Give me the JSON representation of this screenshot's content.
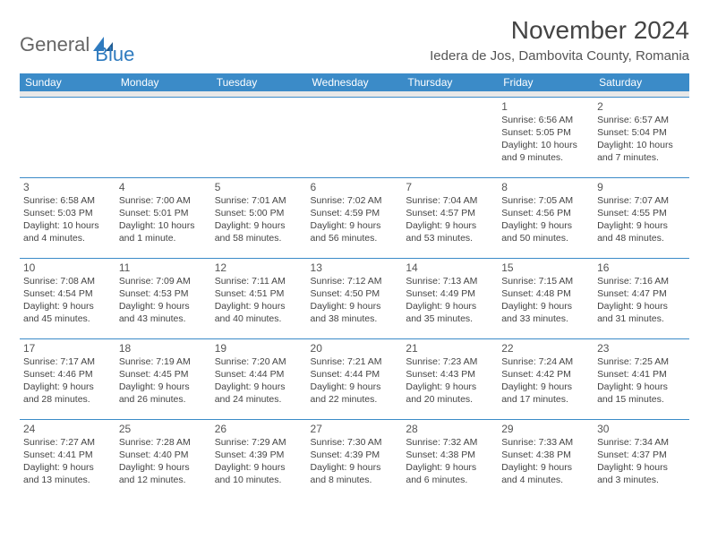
{
  "brand": {
    "general": "General",
    "blue": "Blue"
  },
  "title": "November 2024",
  "location": "Iedera de Jos, Dambovita County, Romania",
  "headers_bg": "#3b8bc8",
  "headers_fg": "#ffffff",
  "spacer_bg": "#e8e8e8",
  "border_color": "#3b8bc8",
  "day_headers": [
    "Sunday",
    "Monday",
    "Tuesday",
    "Wednesday",
    "Thursday",
    "Friday",
    "Saturday"
  ],
  "weeks": [
    [
      null,
      null,
      null,
      null,
      null,
      {
        "n": "1",
        "sr": "6:56 AM",
        "ss": "5:05 PM",
        "dl": "10 hours and 9 minutes."
      },
      {
        "n": "2",
        "sr": "6:57 AM",
        "ss": "5:04 PM",
        "dl": "10 hours and 7 minutes."
      }
    ],
    [
      {
        "n": "3",
        "sr": "6:58 AM",
        "ss": "5:03 PM",
        "dl": "10 hours and 4 minutes."
      },
      {
        "n": "4",
        "sr": "7:00 AM",
        "ss": "5:01 PM",
        "dl": "10 hours and 1 minute."
      },
      {
        "n": "5",
        "sr": "7:01 AM",
        "ss": "5:00 PM",
        "dl": "9 hours and 58 minutes."
      },
      {
        "n": "6",
        "sr": "7:02 AM",
        "ss": "4:59 PM",
        "dl": "9 hours and 56 minutes."
      },
      {
        "n": "7",
        "sr": "7:04 AM",
        "ss": "4:57 PM",
        "dl": "9 hours and 53 minutes."
      },
      {
        "n": "8",
        "sr": "7:05 AM",
        "ss": "4:56 PM",
        "dl": "9 hours and 50 minutes."
      },
      {
        "n": "9",
        "sr": "7:07 AM",
        "ss": "4:55 PM",
        "dl": "9 hours and 48 minutes."
      }
    ],
    [
      {
        "n": "10",
        "sr": "7:08 AM",
        "ss": "4:54 PM",
        "dl": "9 hours and 45 minutes."
      },
      {
        "n": "11",
        "sr": "7:09 AM",
        "ss": "4:53 PM",
        "dl": "9 hours and 43 minutes."
      },
      {
        "n": "12",
        "sr": "7:11 AM",
        "ss": "4:51 PM",
        "dl": "9 hours and 40 minutes."
      },
      {
        "n": "13",
        "sr": "7:12 AM",
        "ss": "4:50 PM",
        "dl": "9 hours and 38 minutes."
      },
      {
        "n": "14",
        "sr": "7:13 AM",
        "ss": "4:49 PM",
        "dl": "9 hours and 35 minutes."
      },
      {
        "n": "15",
        "sr": "7:15 AM",
        "ss": "4:48 PM",
        "dl": "9 hours and 33 minutes."
      },
      {
        "n": "16",
        "sr": "7:16 AM",
        "ss": "4:47 PM",
        "dl": "9 hours and 31 minutes."
      }
    ],
    [
      {
        "n": "17",
        "sr": "7:17 AM",
        "ss": "4:46 PM",
        "dl": "9 hours and 28 minutes."
      },
      {
        "n": "18",
        "sr": "7:19 AM",
        "ss": "4:45 PM",
        "dl": "9 hours and 26 minutes."
      },
      {
        "n": "19",
        "sr": "7:20 AM",
        "ss": "4:44 PM",
        "dl": "9 hours and 24 minutes."
      },
      {
        "n": "20",
        "sr": "7:21 AM",
        "ss": "4:44 PM",
        "dl": "9 hours and 22 minutes."
      },
      {
        "n": "21",
        "sr": "7:23 AM",
        "ss": "4:43 PM",
        "dl": "9 hours and 20 minutes."
      },
      {
        "n": "22",
        "sr": "7:24 AM",
        "ss": "4:42 PM",
        "dl": "9 hours and 17 minutes."
      },
      {
        "n": "23",
        "sr": "7:25 AM",
        "ss": "4:41 PM",
        "dl": "9 hours and 15 minutes."
      }
    ],
    [
      {
        "n": "24",
        "sr": "7:27 AM",
        "ss": "4:41 PM",
        "dl": "9 hours and 13 minutes."
      },
      {
        "n": "25",
        "sr": "7:28 AM",
        "ss": "4:40 PM",
        "dl": "9 hours and 12 minutes."
      },
      {
        "n": "26",
        "sr": "7:29 AM",
        "ss": "4:39 PM",
        "dl": "9 hours and 10 minutes."
      },
      {
        "n": "27",
        "sr": "7:30 AM",
        "ss": "4:39 PM",
        "dl": "9 hours and 8 minutes."
      },
      {
        "n": "28",
        "sr": "7:32 AM",
        "ss": "4:38 PM",
        "dl": "9 hours and 6 minutes."
      },
      {
        "n": "29",
        "sr": "7:33 AM",
        "ss": "4:38 PM",
        "dl": "9 hours and 4 minutes."
      },
      {
        "n": "30",
        "sr": "7:34 AM",
        "ss": "4:37 PM",
        "dl": "9 hours and 3 minutes."
      }
    ]
  ]
}
